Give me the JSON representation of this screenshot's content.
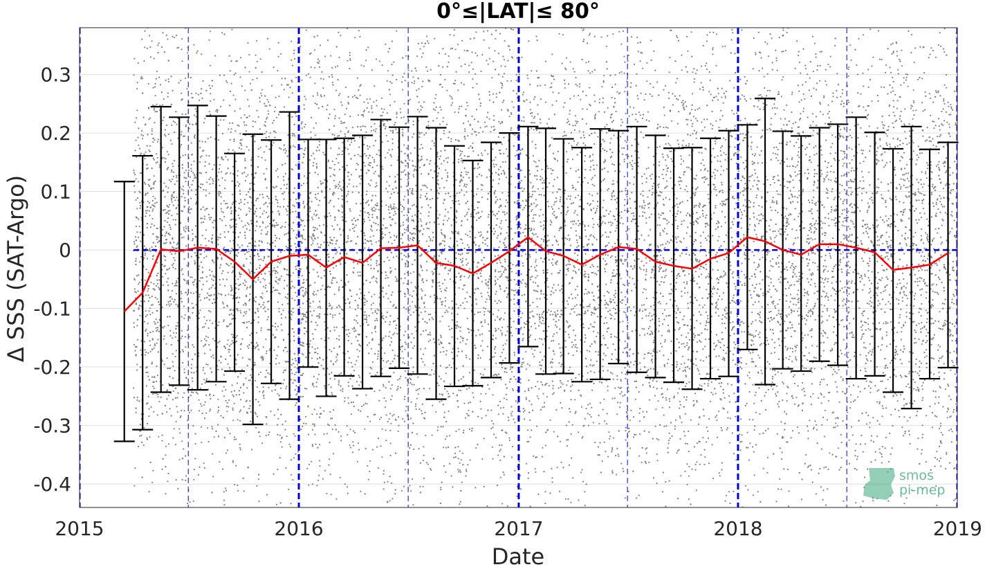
{
  "chart_data": {
    "type": "scatter",
    "title": "0°≤|LAT|≤ 80°",
    "xlabel": "Date",
    "ylabel": "Δ SSS (SAT-Argo)",
    "xlim": [
      "2015-01-01",
      "2019-01-01"
    ],
    "ylim": [
      -0.44,
      0.38
    ],
    "x_ticks": [
      "2015",
      "2016",
      "2017",
      "2018",
      "2019"
    ],
    "y_ticks": [
      0.3,
      0.2,
      0.1,
      0,
      -0.1,
      -0.2,
      -0.3,
      -0.4
    ],
    "y_tick_labels": [
      "0.3",
      "0.2",
      "0.1",
      "0",
      "-0.1",
      "-0.2",
      "-0.3",
      "-0.4"
    ],
    "grid": true,
    "scatter": {
      "color": "#808080",
      "date_range": [
        "2015-04-01",
        "2019-01-01"
      ],
      "note_scatter_points": "dense cloud of individual match-up points"
    },
    "reference_lines": {
      "zero_line_y": 0,
      "color": "#0000dd",
      "year_lines": [
        "2015-01-01",
        "2016-01-01",
        "2017-01-01",
        "2018-01-01",
        "2019-01-01"
      ],
      "half_year_lines": [
        "2015-07-01",
        "2016-07-01",
        "2017-07-01",
        "2018-07-01"
      ]
    },
    "series": [
      {
        "kind": "monthly-mean-with-std",
        "line_color": "#ff0000",
        "errorbar_color": "#000000",
        "x": [
          "2015-03",
          "2015-04",
          "2015-05",
          "2015-06",
          "2015-07",
          "2015-08",
          "2015-09",
          "2015-10",
          "2015-11",
          "2015-12",
          "2016-01",
          "2016-02",
          "2016-03",
          "2016-04",
          "2016-05",
          "2016-06",
          "2016-07",
          "2016-08",
          "2016-09",
          "2016-10",
          "2016-11",
          "2016-12",
          "2017-01",
          "2017-02",
          "2017-03",
          "2017-04",
          "2017-05",
          "2017-06",
          "2017-07",
          "2017-08",
          "2017-09",
          "2017-10",
          "2017-11",
          "2017-12",
          "2018-01",
          "2018-02",
          "2018-03",
          "2018-04",
          "2018-05",
          "2018-06",
          "2018-07",
          "2018-08",
          "2018-09",
          "2018-10",
          "2018-11",
          "2018-12"
        ],
        "mean": [
          -0.105,
          -0.073,
          0.001,
          -0.002,
          0.004,
          0.002,
          -0.02,
          -0.05,
          -0.02,
          -0.01,
          -0.008,
          -0.03,
          -0.012,
          -0.022,
          0.003,
          0.004,
          0.008,
          -0.022,
          -0.027,
          -0.04,
          -0.022,
          -0.002,
          0.022,
          -0.002,
          -0.01,
          -0.025,
          -0.008,
          0.005,
          0.002,
          -0.02,
          -0.027,
          -0.032,
          -0.015,
          -0.005,
          0.022,
          0.015,
          0.0,
          -0.008,
          0.01,
          0.01,
          0.004,
          -0.004,
          -0.034,
          -0.03,
          -0.025,
          -0.005
        ],
        "upper": [
          0.117,
          0.161,
          0.245,
          0.227,
          0.247,
          0.229,
          0.165,
          0.198,
          0.188,
          0.236,
          0.189,
          0.189,
          0.191,
          0.196,
          0.223,
          0.21,
          0.228,
          0.209,
          0.178,
          0.153,
          0.184,
          0.2,
          0.211,
          0.208,
          0.19,
          0.175,
          0.207,
          0.204,
          0.211,
          0.196,
          0.174,
          0.175,
          0.191,
          0.204,
          0.214,
          0.259,
          0.203,
          0.195,
          0.209,
          0.215,
          0.227,
          0.201,
          0.173,
          0.211,
          0.172,
          0.184
        ],
        "lower": [
          -0.327,
          -0.307,
          -0.243,
          -0.231,
          -0.239,
          -0.225,
          -0.207,
          -0.298,
          -0.228,
          -0.255,
          -0.2,
          -0.25,
          -0.215,
          -0.237,
          -0.216,
          -0.202,
          -0.212,
          -0.255,
          -0.233,
          -0.232,
          -0.218,
          -0.193,
          -0.165,
          -0.212,
          -0.211,
          -0.225,
          -0.221,
          -0.194,
          -0.209,
          -0.218,
          -0.226,
          -0.238,
          -0.22,
          -0.216,
          -0.17,
          -0.23,
          -0.203,
          -0.207,
          -0.19,
          -0.197,
          -0.22,
          -0.215,
          -0.243,
          -0.271,
          -0.22,
          -0.201
        ]
      }
    ]
  },
  "logo": {
    "line1": "smos",
    "line2": "pi-mep"
  }
}
